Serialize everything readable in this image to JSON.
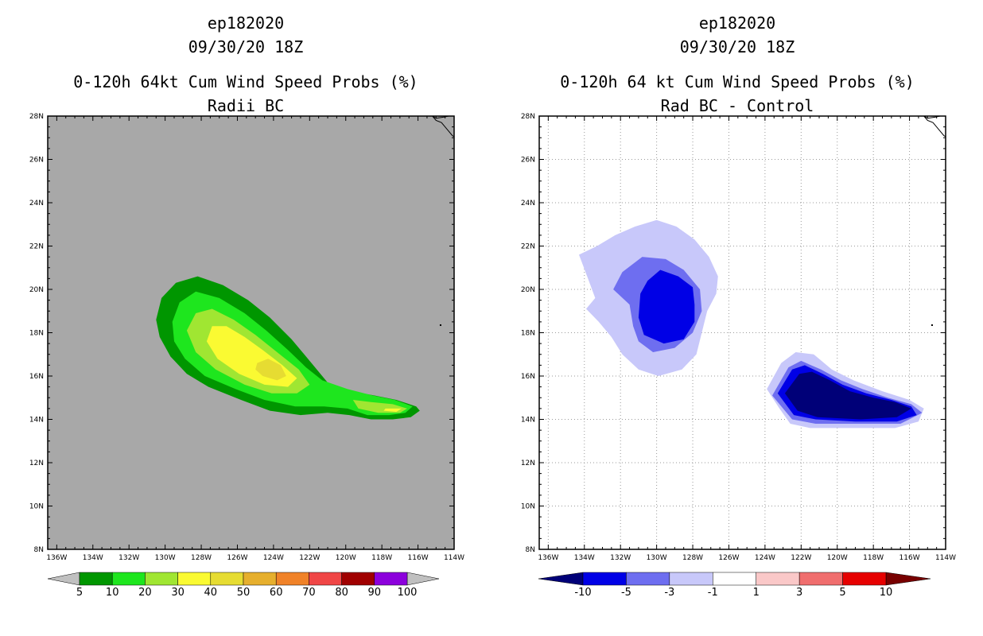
{
  "chart_data": [
    {
      "type": "heatmap",
      "storm_id": "ep182020",
      "datetime": "09/30/20 18Z",
      "title": "0-120h 64kt Cum Wind Speed Probs (%)",
      "subtitle": "Radii BC",
      "xlim": [
        -136.5,
        -114
      ],
      "ylim": [
        8,
        28
      ],
      "x_ticks": [
        -136,
        -134,
        -132,
        -130,
        -128,
        -126,
        -124,
        -122,
        -120,
        -118,
        -116,
        -114
      ],
      "x_tick_labels": [
        "136W",
        "134W",
        "132W",
        "130W",
        "128W",
        "126W",
        "124W",
        "122W",
        "120W",
        "118W",
        "116W",
        "114W"
      ],
      "y_ticks": [
        8,
        10,
        12,
        14,
        16,
        18,
        20,
        22,
        24,
        26,
        28
      ],
      "y_tick_labels": [
        "8N",
        "10N",
        "12N",
        "14N",
        "16N",
        "18N",
        "20N",
        "22N",
        "24N",
        "26N",
        "28N"
      ],
      "grid": false,
      "background_color": "#a8a8a8",
      "colorbar": {
        "labels": [
          "5",
          "10",
          "20",
          "30",
          "40",
          "50",
          "60",
          "70",
          "80",
          "90",
          "100"
        ],
        "colors": [
          "#009600",
          "#1ee61e",
          "#a0e632",
          "#fafa32",
          "#e6dc32",
          "#e6af2d",
          "#f08228",
          "#f04646",
          "#a00000",
          "#8c00dc"
        ],
        "end_color": "#c0c0c0"
      },
      "contours": [
        {
          "level": 5,
          "color": "#009600",
          "points": [
            [
              -130.5,
              18.6
            ],
            [
              -130.2,
              19.6
            ],
            [
              -129.4,
              20.3
            ],
            [
              -128.2,
              20.6
            ],
            [
              -126.8,
              20.2
            ],
            [
              -125.4,
              19.5
            ],
            [
              -124.2,
              18.7
            ],
            [
              -123.0,
              17.7
            ],
            [
              -121.9,
              16.6
            ],
            [
              -121.0,
              15.7
            ],
            [
              -119.7,
              15.3
            ],
            [
              -118.4,
              15.1
            ],
            [
              -117.2,
              14.9
            ],
            [
              -116.1,
              14.6
            ],
            [
              -115.9,
              14.4
            ],
            [
              -116.4,
              14.1
            ],
            [
              -117.4,
              14.0
            ],
            [
              -118.6,
              14.0
            ],
            [
              -119.8,
              14.2
            ],
            [
              -121.0,
              14.3
            ],
            [
              -122.5,
              14.2
            ],
            [
              -124.2,
              14.4
            ],
            [
              -125.8,
              14.9
            ],
            [
              -127.6,
              15.5
            ],
            [
              -128.8,
              16.1
            ],
            [
              -129.7,
              16.9
            ],
            [
              -130.3,
              17.8
            ]
          ]
        },
        {
          "level": 10,
          "color": "#1ee61e",
          "points": [
            [
              -129.6,
              18.5
            ],
            [
              -129.2,
              19.4
            ],
            [
              -128.3,
              19.9
            ],
            [
              -127.0,
              19.6
            ],
            [
              -125.6,
              18.9
            ],
            [
              -124.4,
              18.1
            ],
            [
              -123.2,
              17.2
            ],
            [
              -122.2,
              16.4
            ],
            [
              -121.3,
              15.8
            ],
            [
              -119.9,
              15.4
            ],
            [
              -118.5,
              15.1
            ],
            [
              -117.3,
              14.9
            ],
            [
              -116.3,
              14.6
            ],
            [
              -116.7,
              14.3
            ],
            [
              -117.6,
              14.2
            ],
            [
              -118.8,
              14.2
            ],
            [
              -119.9,
              14.5
            ],
            [
              -121.2,
              14.6
            ],
            [
              -122.8,
              14.6
            ],
            [
              -124.5,
              14.9
            ],
            [
              -126.1,
              15.4
            ],
            [
              -127.8,
              16.0
            ],
            [
              -128.9,
              16.8
            ],
            [
              -129.5,
              17.6
            ]
          ]
        },
        {
          "level": 20,
          "color": "#a0e632",
          "points": [
            [
              -128.8,
              18.1
            ],
            [
              -128.3,
              18.9
            ],
            [
              -127.4,
              19.1
            ],
            [
              -126.2,
              18.6
            ],
            [
              -125.0,
              17.9
            ],
            [
              -123.8,
              17.1
            ],
            [
              -122.6,
              16.3
            ],
            [
              -122.0,
              15.6
            ],
            [
              -122.7,
              15.2
            ],
            [
              -124.1,
              15.2
            ],
            [
              -125.6,
              15.6
            ],
            [
              -127.2,
              16.3
            ],
            [
              -128.3,
              17.1
            ]
          ]
        },
        {
          "level": 20,
          "color": "#a0e632",
          "points": [
            [
              -119.6,
              14.9
            ],
            [
              -118.6,
              14.8
            ],
            [
              -117.4,
              14.7
            ],
            [
              -116.6,
              14.5
            ],
            [
              -117.0,
              14.3
            ],
            [
              -118.2,
              14.3
            ],
            [
              -119.3,
              14.5
            ]
          ]
        },
        {
          "level": 30,
          "color": "#fafa32",
          "points": [
            [
              -127.7,
              17.6
            ],
            [
              -127.4,
              18.3
            ],
            [
              -126.6,
              18.3
            ],
            [
              -125.6,
              17.8
            ],
            [
              -124.6,
              17.2
            ],
            [
              -123.5,
              16.5
            ],
            [
              -122.7,
              15.9
            ],
            [
              -123.2,
              15.5
            ],
            [
              -124.5,
              15.6
            ],
            [
              -125.9,
              16.1
            ],
            [
              -127.1,
              16.8
            ]
          ]
        },
        {
          "level": 30,
          "color": "#fafa32",
          "points": [
            [
              -117.8,
              14.5
            ],
            [
              -116.9,
              14.5
            ],
            [
              -117.2,
              14.35
            ],
            [
              -117.9,
              14.4
            ]
          ]
        },
        {
          "level": 40,
          "color": "#e6dc32",
          "points": [
            [
              -124.9,
              16.6
            ],
            [
              -124.3,
              16.8
            ],
            [
              -123.6,
              16.5
            ],
            [
              -123.3,
              16.0
            ],
            [
              -123.8,
              15.8
            ],
            [
              -124.6,
              16.0
            ],
            [
              -125.0,
              16.3
            ]
          ]
        }
      ],
      "coastline": [
        [
          [
            -115.2,
            28
          ],
          [
            -115.0,
            27.8
          ],
          [
            -114.7,
            27.7
          ],
          [
            -114.5,
            27.5
          ],
          [
            -114.3,
            27.3
          ],
          [
            -114.1,
            27.1
          ],
          [
            -114,
            27.05
          ]
        ],
        [
          [
            -115.2,
            28
          ],
          [
            -115.0,
            27.9
          ],
          [
            -114.6,
            27.95
          ],
          [
            -114.3,
            28
          ]
        ]
      ],
      "islands": [
        [
          -114.75,
          18.35
        ]
      ]
    },
    {
      "type": "heatmap",
      "storm_id": "ep182020",
      "datetime": "09/30/20 18Z",
      "title": "0-120h 64 kt Cum Wind Speed Probs (%)",
      "subtitle": "Rad BC - Control",
      "xlim": [
        -136.5,
        -114
      ],
      "ylim": [
        8,
        28
      ],
      "x_ticks": [
        -136,
        -134,
        -132,
        -130,
        -128,
        -126,
        -124,
        -122,
        -120,
        -118,
        -116,
        -114
      ],
      "x_tick_labels": [
        "136W",
        "134W",
        "132W",
        "130W",
        "128W",
        "126W",
        "124W",
        "122W",
        "120W",
        "118W",
        "116W",
        "114W"
      ],
      "y_ticks": [
        8,
        10,
        12,
        14,
        16,
        18,
        20,
        22,
        24,
        26,
        28
      ],
      "y_tick_labels": [
        "8N",
        "10N",
        "12N",
        "14N",
        "16N",
        "18N",
        "20N",
        "22N",
        "24N",
        "26N",
        "28N"
      ],
      "grid": true,
      "background_color": "#ffffff",
      "colorbar": {
        "labels": [
          "-10",
          "-5",
          "-3",
          "-1",
          "1",
          "3",
          "5",
          "10"
        ],
        "colors": [
          "#0000e6",
          "#6e6ef0",
          "#c8c8fa",
          "#ffffff",
          "#fac8c8",
          "#f06e6e",
          "#e60000"
        ],
        "left_end_color": "#000078",
        "right_end_color": "#780000"
      },
      "contours": [
        {
          "level": -1,
          "color": "#c8c8fa",
          "points": [
            [
              -134.3,
              21.6
            ],
            [
              -133.3,
              22.0
            ],
            [
              -132.3,
              22.5
            ],
            [
              -131.2,
              22.9
            ],
            [
              -130.0,
              23.2
            ],
            [
              -128.9,
              22.9
            ],
            [
              -127.9,
              22.3
            ],
            [
              -127.1,
              21.5
            ],
            [
              -126.6,
              20.6
            ],
            [
              -126.7,
              19.8
            ],
            [
              -127.2,
              19.0
            ],
            [
              -127.5,
              18.0
            ],
            [
              -127.8,
              17.0
            ],
            [
              -128.6,
              16.3
            ],
            [
              -129.9,
              16.0
            ],
            [
              -131.0,
              16.3
            ],
            [
              -131.9,
              17.0
            ],
            [
              -132.5,
              17.8
            ],
            [
              -133.2,
              18.5
            ],
            [
              -133.9,
              19.1
            ],
            [
              -133.4,
              19.6
            ],
            [
              -133.8,
              20.5
            ]
          ]
        },
        {
          "level": -3,
          "color": "#6e6ef0",
          "points": [
            [
              -132.4,
              20.0
            ],
            [
              -131.9,
              20.8
            ],
            [
              -130.8,
              21.5
            ],
            [
              -129.5,
              21.4
            ],
            [
              -128.5,
              20.9
            ],
            [
              -127.6,
              20.0
            ],
            [
              -127.5,
              19.0
            ],
            [
              -128.0,
              18.0
            ],
            [
              -129.0,
              17.3
            ],
            [
              -130.2,
              17.1
            ],
            [
              -131.0,
              17.6
            ],
            [
              -131.3,
              18.3
            ],
            [
              -131.5,
              19.3
            ]
          ]
        },
        {
          "level": -5,
          "color": "#0000e6",
          "points": [
            [
              -130.9,
              19.8
            ],
            [
              -130.5,
              20.4
            ],
            [
              -129.8,
              20.9
            ],
            [
              -128.8,
              20.6
            ],
            [
              -128.0,
              20.1
            ],
            [
              -127.9,
              19.3
            ],
            [
              -127.9,
              18.5
            ],
            [
              -128.5,
              17.7
            ],
            [
              -129.6,
              17.5
            ],
            [
              -130.7,
              17.9
            ],
            [
              -131.0,
              18.7
            ]
          ]
        },
        {
          "level": -1,
          "color": "#c8c8fa",
          "points": [
            [
              -123.9,
              15.4
            ],
            [
              -123.1,
              16.6
            ],
            [
              -122.3,
              17.1
            ],
            [
              -121.3,
              17.0
            ],
            [
              -120.3,
              16.3
            ],
            [
              -119.1,
              15.8
            ],
            [
              -117.5,
              15.3
            ],
            [
              -116.0,
              14.9
            ],
            [
              -115.2,
              14.5
            ],
            [
              -115.5,
              13.9
            ],
            [
              -116.8,
              13.6
            ],
            [
              -119.2,
              13.6
            ],
            [
              -121.5,
              13.6
            ],
            [
              -122.6,
              13.8
            ],
            [
              -123.2,
              14.5
            ]
          ]
        },
        {
          "level": -3,
          "color": "#6e6ef0",
          "points": [
            [
              -123.6,
              15.1
            ],
            [
              -122.7,
              16.4
            ],
            [
              -122.0,
              16.7
            ],
            [
              -120.9,
              16.3
            ],
            [
              -119.8,
              15.8
            ],
            [
              -118.6,
              15.4
            ],
            [
              -117.2,
              15.0
            ],
            [
              -115.9,
              14.7
            ],
            [
              -115.3,
              14.3
            ],
            [
              -116.5,
              13.8
            ],
            [
              -118.9,
              13.8
            ],
            [
              -121.2,
              13.8
            ],
            [
              -122.5,
              14.0
            ]
          ]
        },
        {
          "level": -5,
          "color": "#0000e6",
          "points": [
            [
              -123.3,
              15.2
            ],
            [
              -122.5,
              16.3
            ],
            [
              -121.8,
              16.5
            ],
            [
              -120.8,
              16.1
            ],
            [
              -119.7,
              15.6
            ],
            [
              -118.4,
              15.2
            ],
            [
              -117.0,
              14.9
            ],
            [
              -115.9,
              14.6
            ],
            [
              -115.6,
              14.2
            ],
            [
              -116.7,
              13.9
            ],
            [
              -119.0,
              13.9
            ],
            [
              -121.2,
              14.0
            ],
            [
              -122.4,
              14.2
            ]
          ]
        },
        {
          "level": -10,
          "color": "#000078",
          "points": [
            [
              -122.9,
              15.2
            ],
            [
              -122.1,
              16.1
            ],
            [
              -121.4,
              16.2
            ],
            [
              -120.4,
              15.8
            ],
            [
              -119.3,
              15.3
            ],
            [
              -118.0,
              15.0
            ],
            [
              -116.8,
              14.8
            ],
            [
              -115.9,
              14.5
            ],
            [
              -116.7,
              14.1
            ],
            [
              -118.7,
              14.0
            ],
            [
              -121.1,
              14.1
            ],
            [
              -122.2,
              14.4
            ]
          ]
        }
      ],
      "coastline": [
        [
          [
            -115.2,
            28
          ],
          [
            -115.0,
            27.8
          ],
          [
            -114.7,
            27.7
          ],
          [
            -114.5,
            27.5
          ],
          [
            -114.3,
            27.3
          ],
          [
            -114.1,
            27.1
          ],
          [
            -114,
            27.05
          ]
        ],
        [
          [
            -115.2,
            28
          ],
          [
            -115.0,
            27.9
          ],
          [
            -114.6,
            27.95
          ],
          [
            -114.3,
            28
          ]
        ]
      ],
      "islands": [
        [
          -114.75,
          18.35
        ]
      ]
    }
  ]
}
